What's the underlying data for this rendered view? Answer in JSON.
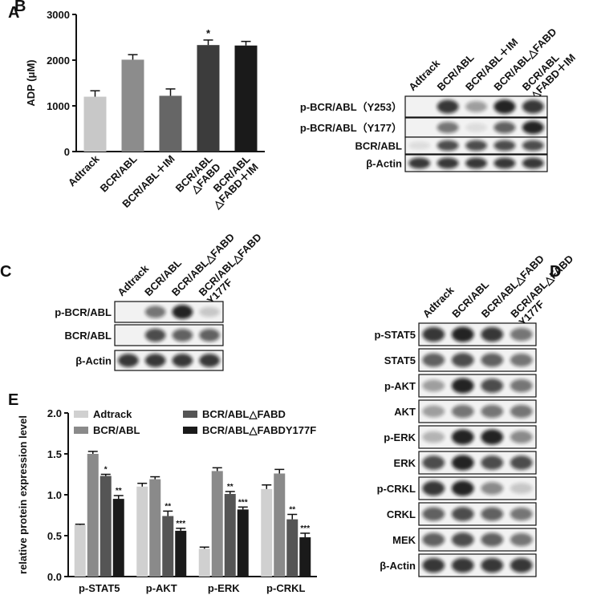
{
  "chart_data": [
    {
      "type": "bar",
      "panel": "A",
      "ylabel": "ADP (μM)",
      "categories": [
        "Adtrack",
        "BCR/ABL",
        "BCR/ABL＋IM",
        "BCR/ABL\n△FABD",
        "BCR/ABL\n△FABD＋IM"
      ],
      "values": [
        1200,
        2010,
        1220,
        2330,
        2320
      ],
      "errors": [
        130,
        110,
        150,
        110,
        90
      ],
      "colors": [
        "#c8c8c8",
        "#8c8c8c",
        "#666666",
        "#3c3c3c",
        "#1a1a1a"
      ],
      "significance": [
        null,
        null,
        null,
        "*",
        null
      ],
      "ylim": [
        0,
        3000
      ],
      "yticks": [
        0,
        1000,
        2000,
        3000
      ]
    },
    {
      "type": "grouped_bar",
      "panel": "E",
      "ylabel": "relative protein expression level",
      "categories": [
        "p-STAT5",
        "p-AKT",
        "p-ERK",
        "p-CRKL"
      ],
      "series": [
        {
          "name": "Adtrack",
          "color": "#d0d0d0",
          "values": [
            0.63,
            1.1,
            0.34,
            1.07
          ],
          "errors": [
            0.01,
            0.04,
            0.02,
            0.05
          ],
          "significance": [
            null,
            null,
            null,
            null
          ]
        },
        {
          "name": "BCR/ABL",
          "color": "#8a8a8a",
          "values": [
            1.5,
            1.19,
            1.29,
            1.26
          ],
          "errors": [
            0.03,
            0.03,
            0.04,
            0.05
          ],
          "significance": [
            null,
            null,
            null,
            null
          ]
        },
        {
          "name": "BCR/ABL△FABD",
          "color": "#555555",
          "values": [
            1.23,
            0.74,
            1.01,
            0.7
          ],
          "errors": [
            0.02,
            0.06,
            0.03,
            0.06
          ],
          "significance": [
            "*",
            "**",
            "**",
            "**"
          ]
        },
        {
          "name": "BCR/ABL△FABDY177F",
          "color": "#1a1a1a",
          "values": [
            0.95,
            0.56,
            0.82,
            0.48
          ],
          "errors": [
            0.04,
            0.03,
            0.03,
            0.05
          ],
          "significance": [
            "**",
            "***",
            "***",
            "***"
          ]
        }
      ],
      "ylim": [
        0,
        2.0
      ],
      "yticks": [
        {
          "value": 0,
          "label": "0.0"
        },
        0.5,
        {
          "value": 1,
          "label": "1.0"
        },
        1.5,
        {
          "value": 2,
          "label": "2.0"
        }
      ]
    }
  ],
  "blots": [
    {
      "panel": "B",
      "lanes": [
        "Adtrack",
        "BCR/ABL",
        "BCR/ABL＋IM",
        "BCR/ABL△FABD",
        "BCR/ABL\n△FABD＋IM"
      ],
      "rows": [
        "p-BCR/ABL（Y253）",
        "p-BCR/ABL（Y177）",
        "BCR/ABL",
        "β-Actin"
      ]
    },
    {
      "panel": "C",
      "lanes": [
        "Adtrack",
        "BCR/ABL",
        "BCR/ABL△FABD",
        "BCR/ABL△FABD\nY177F"
      ],
      "rows": [
        "p-BCR/ABL",
        "BCR/ABL",
        "β-Actin"
      ]
    },
    {
      "panel": "D",
      "lanes": [
        "Adtrack",
        "BCR/ABL",
        "BCR/ABL△FABD",
        "BCR/ABL△FABD\nY177F"
      ],
      "rows": [
        "p-STAT5",
        "STAT5",
        "p-AKT",
        "AKT",
        "p-ERK",
        "ERK",
        "p-CRKL",
        "CRKL",
        "MEK",
        "β-Actin"
      ]
    }
  ]
}
